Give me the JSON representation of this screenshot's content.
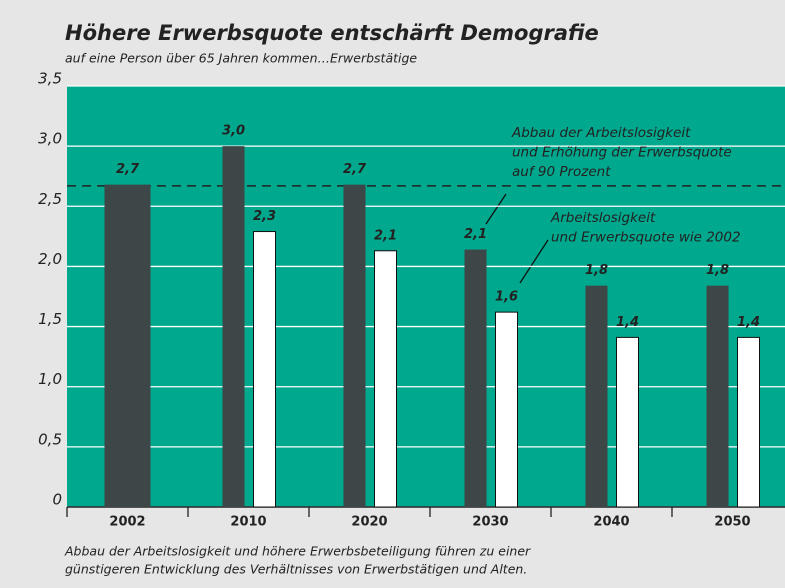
{
  "chart_data": {
    "type": "bar",
    "title": "Höhere Erwerbsquote entschärft Demografie",
    "subtitle": "auf eine Person über 65 Jahren kommen…Erwerbstätige",
    "categories": [
      "2002",
      "2010",
      "2020",
      "2030",
      "2040",
      "2050"
    ],
    "series": [
      {
        "color": "#3d4747",
        "values": [
          2.68,
          3.0,
          2.68,
          2.14,
          1.84,
          1.84
        ],
        "value_labels": [
          "2,7",
          "3,0",
          "2,7",
          "2,1",
          "1,8",
          "1,8"
        ]
      },
      {
        "color": "#ffffff",
        "values": [
          null,
          2.29,
          2.13,
          1.62,
          1.41,
          1.41
        ],
        "value_labels": [
          null,
          "2,3",
          "2,1",
          "1,6",
          "1,4",
          "1,4"
        ]
      }
    ],
    "reference_line": 2.67,
    "ylim": [
      0,
      3.5
    ],
    "yticks": [
      0,
      {
        "value": 0.5,
        "label": "0,5"
      },
      {
        "value": 1.0,
        "label": "1,0"
      },
      {
        "value": 1.5,
        "label": "1,5"
      },
      {
        "value": 2.0,
        "label": "2,0"
      },
      {
        "value": 2.5,
        "label": "2,5"
      },
      {
        "value": 3.0,
        "label": "3,0"
      },
      {
        "value": 3.5,
        "label": "3,5"
      }
    ],
    "grid": true,
    "plot_color": "#00a88e",
    "annotations": [
      [
        "Abbau der Arbeitslosigkeit",
        "und Erhöhung der Erwerbsquote",
        "auf 90 Prozent"
      ],
      [
        "Arbeitslosigkeit",
        "und Erwerbsquote wie 2002"
      ]
    ],
    "footnote": [
      "Abbau der Arbeitslosigkeit und höhere Erwerbsbeteiligung führen zu einer",
      "günstigeren Entwicklung des Verhältnisses von Erwerbstätigen und Alten."
    ]
  }
}
